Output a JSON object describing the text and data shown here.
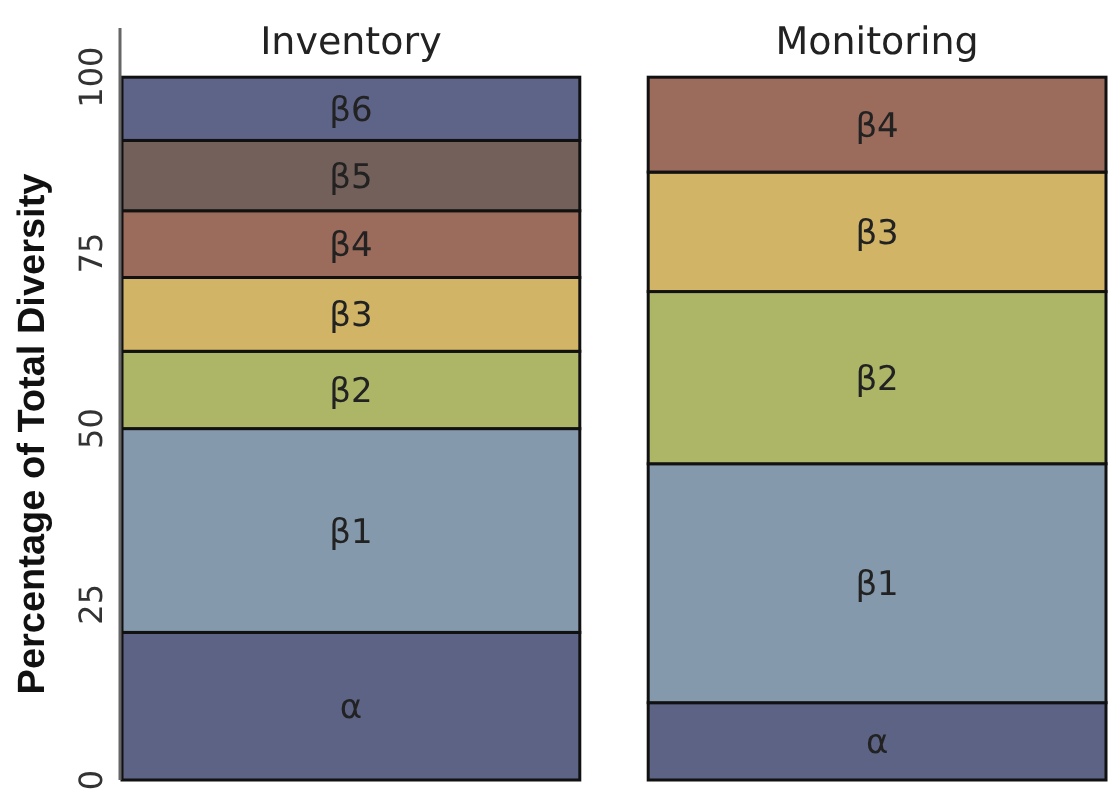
{
  "chart_data": {
    "type": "bar",
    "stacked": true,
    "ylabel": "Percentage of Total Diversity",
    "categories": [
      "Inventory",
      "Monitoring"
    ],
    "series": [
      {
        "name": "α",
        "color": "#5c6385",
        "values": [
          21,
          11
        ]
      },
      {
        "name": "β1",
        "color": "#8599ad",
        "values": [
          29,
          34
        ]
      },
      {
        "name": "β2",
        "color": "#adb566",
        "values": [
          11,
          24.5
        ]
      },
      {
        "name": "β3",
        "color": "#d1b466",
        "values": [
          10.5,
          17
        ]
      },
      {
        "name": "β4",
        "color": "#9b6b5b",
        "values": [
          9.5,
          13.5
        ]
      },
      {
        "name": "β5",
        "color": "#74605a",
        "values": [
          10,
          null
        ]
      },
      {
        "name": "β6",
        "color": "#5d6488",
        "values": [
          9,
          null
        ]
      }
    ],
    "ylim": [
      0,
      107
    ],
    "yticks": [
      0,
      25,
      50,
      75,
      100
    ],
    "grid": false
  }
}
